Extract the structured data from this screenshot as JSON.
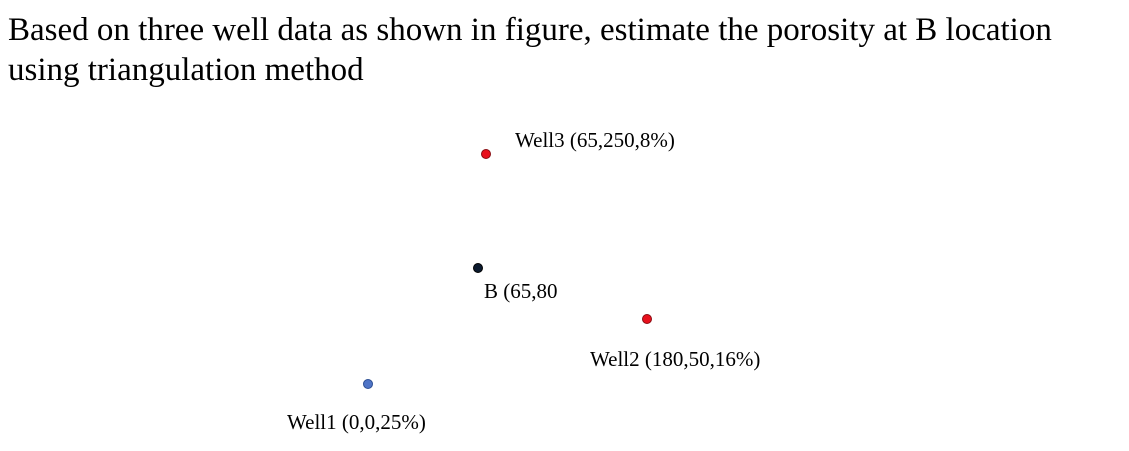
{
  "title": "Based on three well data as shown in figure, estimate the porosity at B location using triangulation method",
  "points": [
    {
      "label": "Well3 (65,250,8%)"
    },
    {
      "label": "B (65,80"
    },
    {
      "label": "Well2 (180,50,16%)"
    },
    {
      "label": "Well1 (0,0,25%)"
    }
  ]
}
